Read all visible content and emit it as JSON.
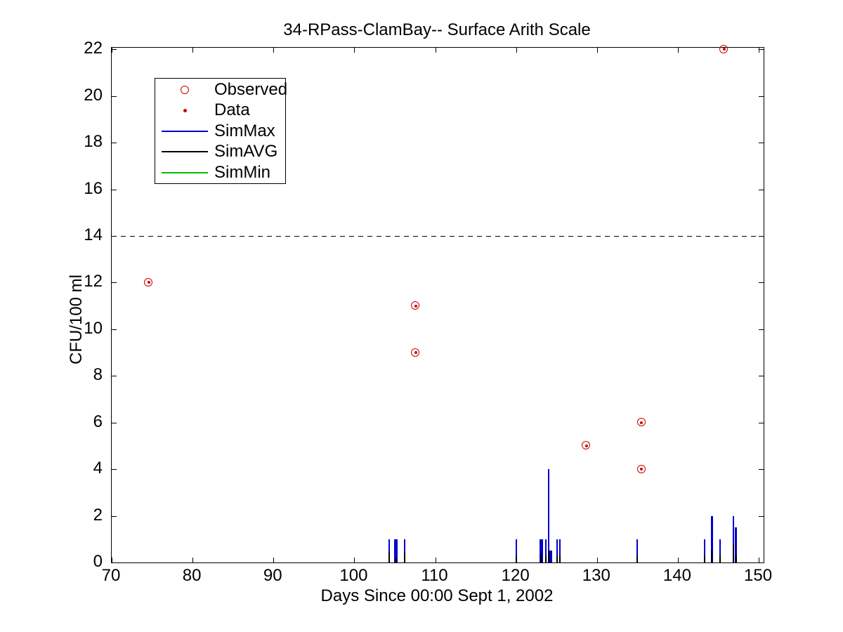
{
  "chart_data": {
    "type": "line+scatter",
    "title": "34-RPass-ClamBay-- Surface Arith Scale",
    "xlabel": "Days Since 00:00 Sept 1, 2002",
    "ylabel": "CFU/100 ml",
    "xlim": [
      70,
      150.6
    ],
    "ylim": [
      0,
      22.07
    ],
    "xticks": [
      70,
      80,
      90,
      100,
      110,
      120,
      130,
      140,
      150
    ],
    "yticks": [
      0,
      2,
      4,
      6,
      8,
      10,
      12,
      14,
      16,
      18,
      20,
      22
    ],
    "grid": false,
    "background": "#FFFFFF",
    "axis_color": "#000000",
    "legend_position": "upper-left",
    "threshold_line": {
      "y": 14,
      "style": "dashed",
      "color": "#000000"
    },
    "series": [
      {
        "name": "Observed",
        "type": "scatter",
        "marker": "circle",
        "color": "#CC0000",
        "points": [
          [
            74.6,
            12
          ],
          [
            107.6,
            11
          ],
          [
            107.6,
            9
          ],
          [
            128.7,
            5
          ],
          [
            135.5,
            6
          ],
          [
            135.5,
            4
          ],
          [
            145.7,
            22
          ]
        ]
      },
      {
        "name": "Data",
        "type": "scatter",
        "marker": "dot",
        "color": "#CC0000",
        "points": [
          [
            74.6,
            12
          ],
          [
            107.6,
            11
          ],
          [
            107.6,
            9
          ],
          [
            128.7,
            5
          ],
          [
            135.5,
            6
          ],
          [
            135.5,
            4
          ],
          [
            145.7,
            22
          ]
        ]
      },
      {
        "name": "SimMax",
        "type": "spikes",
        "color": "#0000CC",
        "points": [
          [
            104.3,
            1,
            2
          ],
          [
            105.1,
            1,
            5
          ],
          [
            106.2,
            1,
            2
          ],
          [
            120.0,
            1,
            2
          ],
          [
            123.1,
            1,
            5
          ],
          [
            123.65,
            1,
            2
          ],
          [
            124.0,
            4,
            2
          ],
          [
            124.3,
            0.5,
            4
          ],
          [
            125.1,
            1,
            2
          ],
          [
            125.4,
            1,
            2
          ],
          [
            135.0,
            1,
            2
          ],
          [
            143.3,
            1,
            2
          ],
          [
            144.2,
            2,
            3
          ],
          [
            145.2,
            1,
            2
          ],
          [
            146.9,
            2,
            2
          ],
          [
            147.2,
            1.5,
            3
          ]
        ]
      },
      {
        "name": "SimAVG",
        "type": "spikes",
        "color": "#000000",
        "points": [
          [
            104.3,
            0.45,
            2
          ],
          [
            105.2,
            0.2,
            2
          ],
          [
            106.2,
            0.45,
            2
          ],
          [
            120.0,
            0.3,
            2
          ],
          [
            123.1,
            0.4,
            2
          ],
          [
            123.65,
            0.3,
            2
          ],
          [
            124.0,
            0.5,
            2
          ],
          [
            125.1,
            0.3,
            2
          ],
          [
            125.4,
            0.3,
            2
          ],
          [
            135.0,
            0.3,
            2
          ],
          [
            143.3,
            0.3,
            2
          ],
          [
            144.2,
            0.5,
            2
          ],
          [
            145.2,
            0.3,
            2
          ],
          [
            146.9,
            0.8,
            2
          ],
          [
            147.2,
            0.3,
            2
          ]
        ]
      },
      {
        "name": "SimMin",
        "type": "spikes",
        "color": "#00C000",
        "points": []
      }
    ]
  }
}
